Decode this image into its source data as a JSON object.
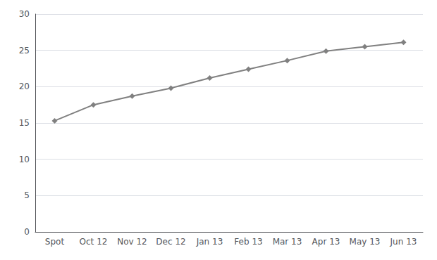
{
  "chart_data": {
    "type": "line",
    "categories": [
      "Spot",
      "Oct 12",
      "Nov 12",
      "Dec 12",
      "Jan 13",
      "Feb 13",
      "Mar 13",
      "Apr 13",
      "May 13",
      "Jun 13"
    ],
    "values": [
      15.3,
      17.5,
      18.7,
      19.8,
      21.2,
      22.4,
      23.6,
      24.9,
      25.5,
      26.1
    ],
    "color": "#808080",
    "marker": "diamond",
    "ylim": [
      0,
      30
    ],
    "yticks": [
      0,
      5,
      10,
      15,
      20,
      25,
      30
    ],
    "grid": true
  }
}
